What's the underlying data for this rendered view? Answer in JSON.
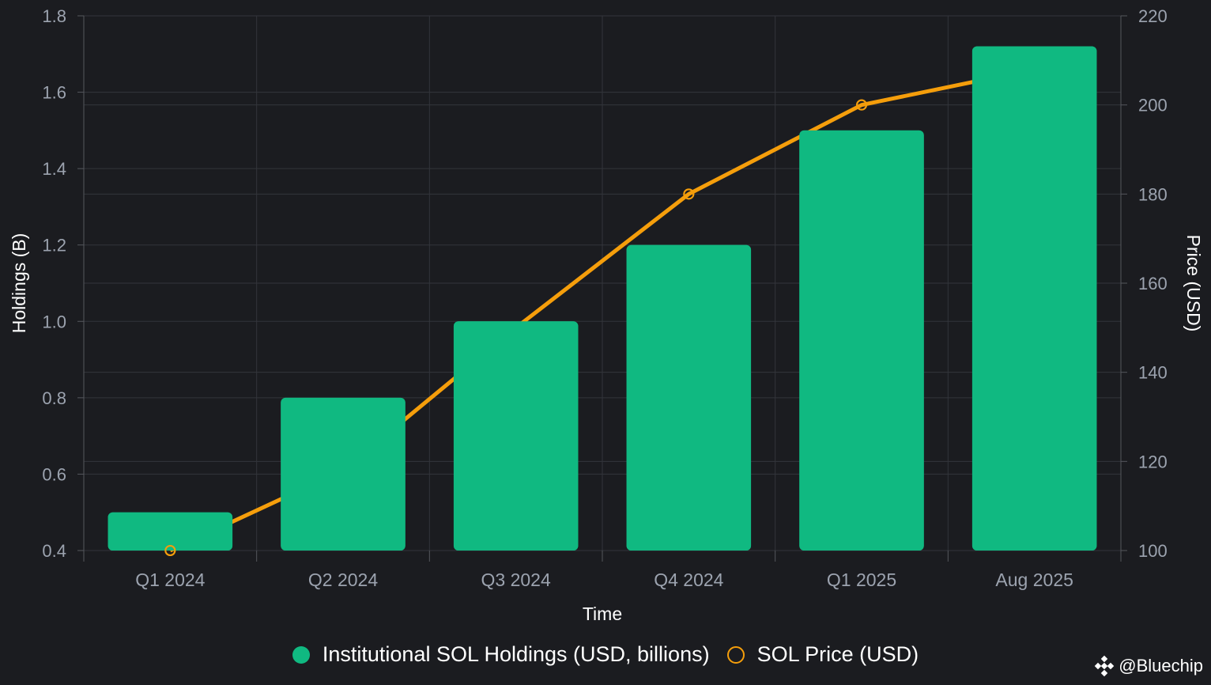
{
  "chart_data": {
    "type": "bar",
    "categories": [
      "Q1 2024",
      "Q2 2024",
      "Q3 2024",
      "Q4 2024",
      "Q1 2025",
      "Aug 2025"
    ],
    "series": [
      {
        "name": "Institutional SOL Holdings (USD, billions)",
        "type": "bar",
        "axis": "left",
        "values": [
          0.5,
          0.8,
          1.0,
          1.2,
          1.5,
          1.72
        ]
      },
      {
        "name": "SOL Price (USD)",
        "type": "line",
        "axis": "right",
        "values": [
          100,
          118,
          150,
          180,
          200,
          208
        ]
      }
    ],
    "xlabel": "Time",
    "ylabel": "Holdings (B)",
    "y2label": "Price (USD)",
    "ylim": [
      0.4,
      1.8
    ],
    "y2lim": [
      100,
      220
    ],
    "yticks": [
      "0.4",
      "0.6",
      "0.8",
      "1.0",
      "1.2",
      "1.4",
      "1.6",
      "1.8"
    ],
    "y2ticks": [
      "100",
      "120",
      "140",
      "160",
      "180",
      "200",
      "220"
    ],
    "grid": true,
    "legend_position": "bottom-center",
    "colors": {
      "bar": "#10b981",
      "line": "#f59e0b",
      "background": "#1b1c20",
      "grid": "#33353b",
      "tick_text": "#9ca3af",
      "label_text": "#ffffff"
    }
  },
  "watermark": {
    "text": "@Bluechip",
    "icon": "diamond-logo-icon"
  }
}
